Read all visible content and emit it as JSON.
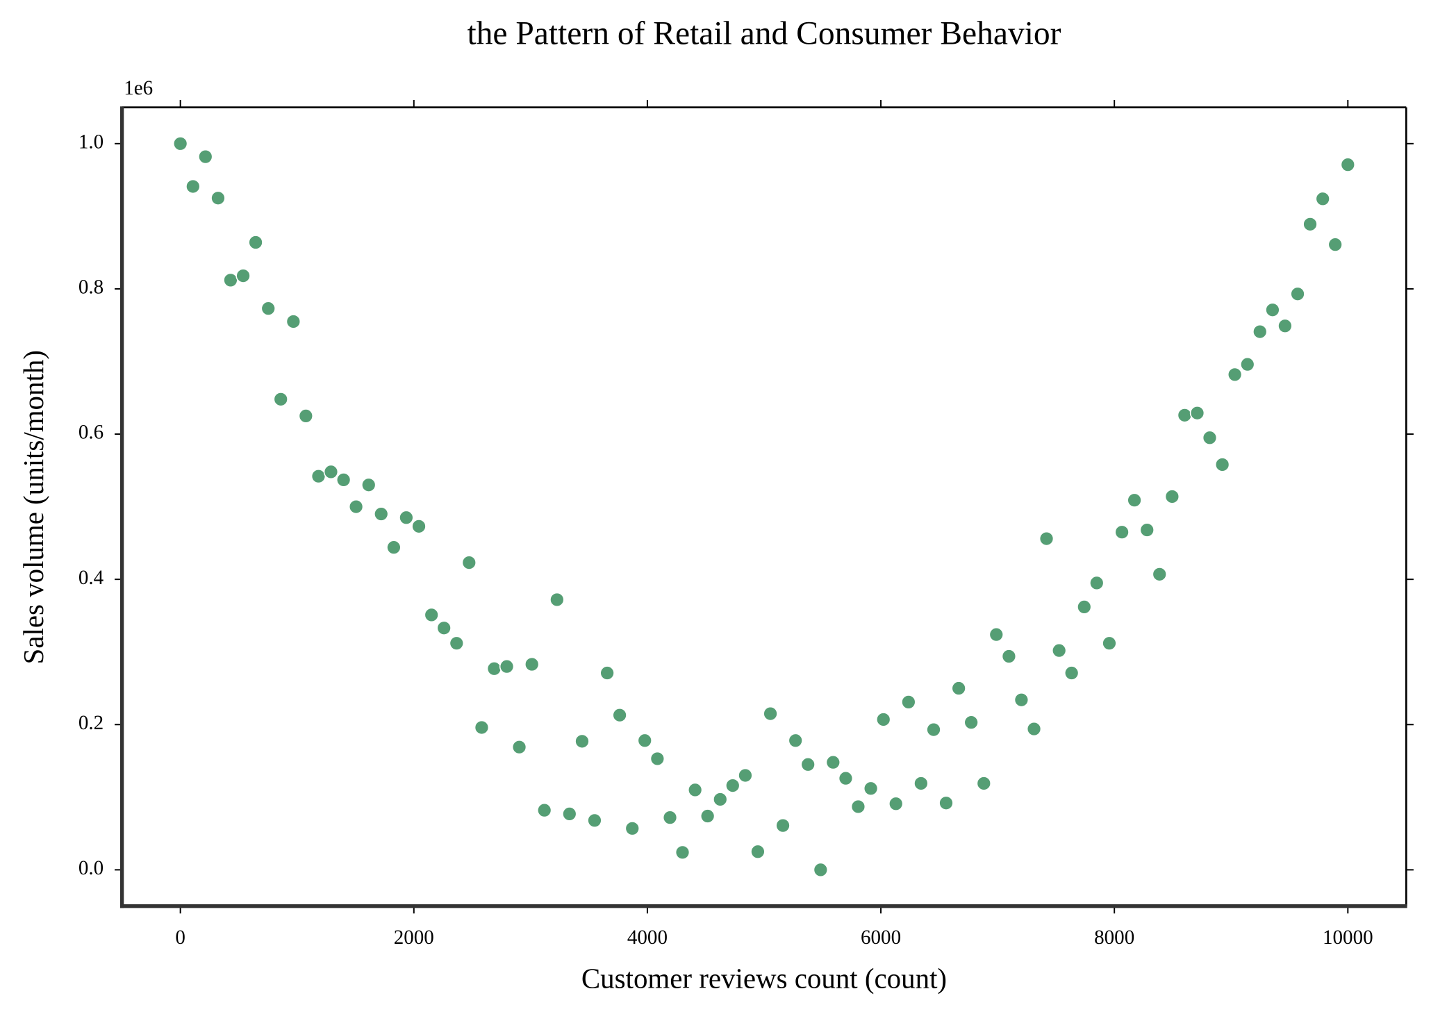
{
  "chart_data": {
    "type": "scatter",
    "title": "the Pattern of Retail and Consumer Behavior",
    "xlabel": "Customer reviews count (count)",
    "ylabel": "Sales volume (units/month)",
    "y_offset_label": "1e6",
    "color": "#559e74",
    "xlim": [
      -500,
      10500
    ],
    "ylim": [
      -0.05,
      1.05
    ],
    "xticks": [
      0,
      2000,
      4000,
      6000,
      8000,
      10000
    ],
    "yticks": [
      {
        "value": 0,
        "label": "0.0"
      },
      {
        "value": 0.2,
        "label": "0.2"
      },
      {
        "value": 0.4,
        "label": "0.4"
      },
      {
        "value": 0.6,
        "label": "0.6"
      },
      {
        "value": 0.8,
        "label": "0.8"
      },
      {
        "value": 1,
        "label": "1.0"
      }
    ],
    "x": [
      0,
      108,
      215,
      323,
      430,
      538,
      645,
      753,
      860,
      968,
      1075,
      1183,
      1290,
      1398,
      1505,
      1613,
      1720,
      1828,
      1935,
      2043,
      2151,
      2258,
      2366,
      2473,
      2581,
      2688,
      2796,
      2903,
      3011,
      3118,
      3226,
      3333,
      3441,
      3548,
      3656,
      3763,
      3871,
      3978,
      4086,
      4194,
      4301,
      4409,
      4516,
      4624,
      4731,
      4839,
      4946,
      5054,
      5161,
      5269,
      5376,
      5484,
      5591,
      5699,
      5806,
      5914,
      6022,
      6129,
      6237,
      6344,
      6452,
      6559,
      6667,
      6774,
      6882,
      6989,
      7097,
      7204,
      7312,
      7419,
      7527,
      7634,
      7742,
      7849,
      7957,
      8065,
      8172,
      8280,
      8387,
      8495,
      8602,
      8710,
      8817,
      8925,
      9032,
      9140,
      9247,
      9355,
      9462,
      9570,
      9677,
      9785,
      9892,
      10000
    ],
    "values": [
      1.0,
      0.941,
      0.982,
      0.925,
      0.812,
      0.818,
      0.864,
      0.773,
      0.648,
      0.755,
      0.625,
      0.542,
      0.548,
      0.537,
      0.5,
      0.53,
      0.49,
      0.444,
      0.485,
      0.473,
      0.351,
      0.333,
      0.312,
      0.423,
      0.196,
      0.277,
      0.28,
      0.169,
      0.283,
      0.082,
      0.372,
      0.077,
      0.177,
      0.068,
      0.271,
      0.213,
      0.057,
      0.178,
      0.153,
      0.072,
      0.024,
      0.11,
      0.074,
      0.097,
      0.116,
      0.13,
      0.025,
      0.215,
      0.061,
      0.178,
      0.145,
      0.0,
      0.148,
      0.126,
      0.087,
      0.112,
      0.207,
      0.091,
      0.231,
      0.119,
      0.193,
      0.092,
      0.25,
      0.203,
      0.119,
      0.324,
      0.294,
      0.234,
      0.194,
      0.456,
      0.302,
      0.271,
      0.362,
      0.395,
      0.312,
      0.465,
      0.509,
      0.468,
      0.407,
      0.514,
      0.626,
      0.629,
      0.595,
      0.558,
      0.682,
      0.696,
      0.741,
      0.771,
      0.749,
      0.793,
      0.889,
      0.924,
      0.861,
      0.971
    ]
  }
}
